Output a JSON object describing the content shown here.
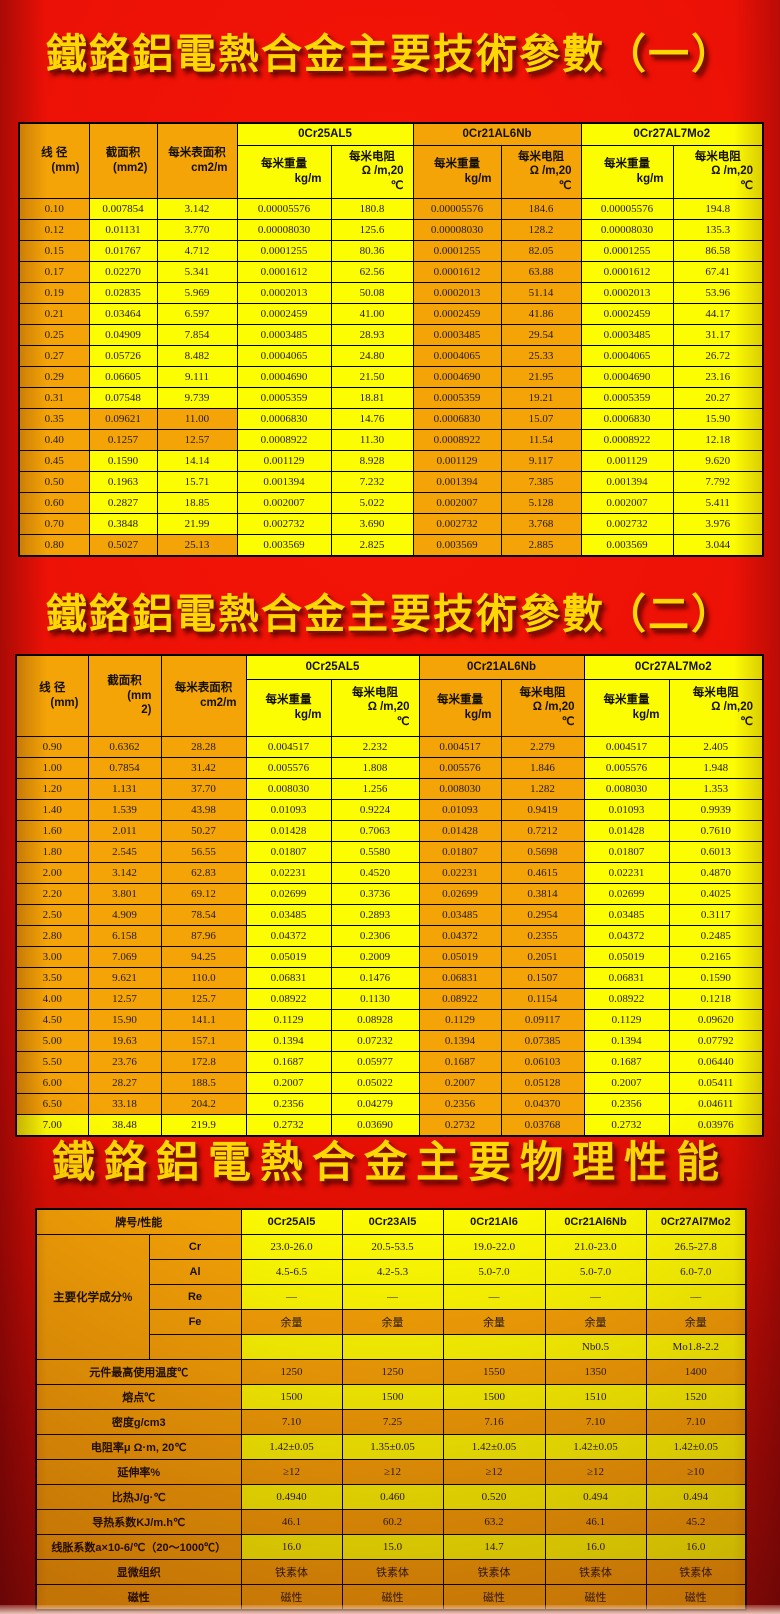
{
  "titles": {
    "t1": "鐵鉻鋁電熱合金主要技術參數（一）",
    "t2": "鐵鉻鋁電熱合金主要技術參數（二）",
    "t3": "鐵鉻鋁電熱合金主要物理性能"
  },
  "colors": {
    "background_red": "#e80f04",
    "cell_orange": "#f4a406",
    "cell_yellow": "#fdfd02",
    "title_gold": "#ffd704",
    "cell_text": "#221a18"
  },
  "header": {
    "diameter": [
      "线 径",
      "(mm)"
    ],
    "area1": [
      "截面积",
      "(mm2)"
    ],
    "area2": [
      "截面积",
      "(mm",
      "2)"
    ],
    "surface": [
      "每米表面积",
      "cm2/m"
    ],
    "alloys": [
      "0Cr25AL5",
      "0Cr21AL6Nb",
      "0Cr27AL7Mo2"
    ],
    "weight": [
      "每米重量",
      "kg/m"
    ],
    "resistance": [
      "每米电阻",
      "Ω /m,20",
      "℃"
    ]
  },
  "table1": {
    "tones": {
      "default": "oyyyyooyy",
      "overrides": {
        "10": "oooyyooyy",
        "11": "oooyyooyy",
        "16": "oooyyooyy"
      }
    },
    "rows": [
      [
        "0.10",
        "0.007854",
        "3.142",
        "0.00005576",
        "180.8",
        "0.00005576",
        "184.6",
        "0.00005576",
        "194.8"
      ],
      [
        "0.12",
        "0.01131",
        "3.770",
        "0.00008030",
        "125.6",
        "0.00008030",
        "128.2",
        "0.00008030",
        "135.3"
      ],
      [
        "0.15",
        "0.01767",
        "4.712",
        "0.0001255",
        "80.36",
        "0.0001255",
        "82.05",
        "0.0001255",
        "86.58"
      ],
      [
        "0.17",
        "0.02270",
        "5.341",
        "0.0001612",
        "62.56",
        "0.0001612",
        "63.88",
        "0.0001612",
        "67.41"
      ],
      [
        "0.19",
        "0.02835",
        "5.969",
        "0.0002013",
        "50.08",
        "0.0002013",
        "51.14",
        "0.0002013",
        "53.96"
      ],
      [
        "0.21",
        "0.03464",
        "6.597",
        "0.0002459",
        "41.00",
        "0.0002459",
        "41.86",
        "0.0002459",
        "44.17"
      ],
      [
        "0.25",
        "0.04909",
        "7.854",
        "0.0003485",
        "28.93",
        "0.0003485",
        "29.54",
        "0.0003485",
        "31.17"
      ],
      [
        "0.27",
        "0.05726",
        "8.482",
        "0.0004065",
        "24.80",
        "0.0004065",
        "25.33",
        "0.0004065",
        "26.72"
      ],
      [
        "0.29",
        "0.06605",
        "9.111",
        "0.0004690",
        "21.50",
        "0.0004690",
        "21.95",
        "0.0004690",
        "23.16"
      ],
      [
        "0.31",
        "0.07548",
        "9.739",
        "0.0005359",
        "18.81",
        "0.0005359",
        "19.21",
        "0.0005359",
        "20.27"
      ],
      [
        "0.35",
        "0.09621",
        "11.00",
        "0.0006830",
        "14.76",
        "0.0006830",
        "15.07",
        "0.0006830",
        "15.90"
      ],
      [
        "0.40",
        "0.1257",
        "12.57",
        "0.0008922",
        "11.30",
        "0.0008922",
        "11.54",
        "0.0008922",
        "12.18"
      ],
      [
        "0.45",
        "0.1590",
        "14.14",
        "0.001129",
        "8.928",
        "0.001129",
        "9.117",
        "0.001129",
        "9.620"
      ],
      [
        "0.50",
        "0.1963",
        "15.71",
        "0.001394",
        "7.232",
        "0.001394",
        "7.385",
        "0.001394",
        "7.792"
      ],
      [
        "0.60",
        "0.2827",
        "18.85",
        "0.002007",
        "5.022",
        "0.002007",
        "5.128",
        "0.002007",
        "5.411"
      ],
      [
        "0.70",
        "0.3848",
        "21.99",
        "0.002732",
        "3.690",
        "0.002732",
        "3.768",
        "0.002732",
        "3.976"
      ],
      [
        "0.80",
        "0.5027",
        "25.13",
        "0.003569",
        "2.825",
        "0.003569",
        "2.885",
        "0.003569",
        "3.044"
      ]
    ]
  },
  "table2": {
    "tones": {
      "default": "oooyyooyy",
      "overrides": {
        "18": "yyyyyooyy"
      }
    },
    "rows": [
      [
        "0.90",
        "0.6362",
        "28.28",
        "0.004517",
        "2.232",
        "0.004517",
        "2.279",
        "0.004517",
        "2.405"
      ],
      [
        "1.00",
        "0.7854",
        "31.42",
        "0.005576",
        "1.808",
        "0.005576",
        "1.846",
        "0.005576",
        "1.948"
      ],
      [
        "1.20",
        "1.131",
        "37.70",
        "0.008030",
        "1.256",
        "0.008030",
        "1.282",
        "0.008030",
        "1.353"
      ],
      [
        "1.40",
        "1.539",
        "43.98",
        "0.01093",
        "0.9224",
        "0.01093",
        "0.9419",
        "0.01093",
        "0.9939"
      ],
      [
        "1.60",
        "2.011",
        "50.27",
        "0.01428",
        "0.7063",
        "0.01428",
        "0.7212",
        "0.01428",
        "0.7610"
      ],
      [
        "1.80",
        "2.545",
        "56.55",
        "0.01807",
        "0.5580",
        "0.01807",
        "0.5698",
        "0.01807",
        "0.6013"
      ],
      [
        "2.00",
        "3.142",
        "62.83",
        "0.02231",
        "0.4520",
        "0.02231",
        "0.4615",
        "0.02231",
        "0.4870"
      ],
      [
        "2.20",
        "3.801",
        "69.12",
        "0.02699",
        "0.3736",
        "0.02699",
        "0.3814",
        "0.02699",
        "0.4025"
      ],
      [
        "2.50",
        "4.909",
        "78.54",
        "0.03485",
        "0.2893",
        "0.03485",
        "0.2954",
        "0.03485",
        "0.3117"
      ],
      [
        "2.80",
        "6.158",
        "87.96",
        "0.04372",
        "0.2306",
        "0.04372",
        "0.2355",
        "0.04372",
        "0.2485"
      ],
      [
        "3.00",
        "7.069",
        "94.25",
        "0.05019",
        "0.2009",
        "0.05019",
        "0.2051",
        "0.05019",
        "0.2165"
      ],
      [
        "3.50",
        "9.621",
        "110.0",
        "0.06831",
        "0.1476",
        "0.06831",
        "0.1507",
        "0.06831",
        "0.1590"
      ],
      [
        "4.00",
        "12.57",
        "125.7",
        "0.08922",
        "0.1130",
        "0.08922",
        "0.1154",
        "0.08922",
        "0.1218"
      ],
      [
        "4.50",
        "15.90",
        "141.1",
        "0.1129",
        "0.08928",
        "0.1129",
        "0.09117",
        "0.1129",
        "0.09620"
      ],
      [
        "5.00",
        "19.63",
        "157.1",
        "0.1394",
        "0.07232",
        "0.1394",
        "0.07385",
        "0.1394",
        "0.07792"
      ],
      [
        "5.50",
        "23.76",
        "172.8",
        "0.1687",
        "0.05977",
        "0.1687",
        "0.06103",
        "0.1687",
        "0.06440"
      ],
      [
        "6.00",
        "28.27",
        "188.5",
        "0.2007",
        "0.05022",
        "0.2007",
        "0.05128",
        "0.2007",
        "0.05411"
      ],
      [
        "6.50",
        "33.18",
        "204.2",
        "0.2356",
        "0.04279",
        "0.2356",
        "0.04370",
        "0.2356",
        "0.04611"
      ],
      [
        "7.00",
        "38.48",
        "219.9",
        "0.2732",
        "0.03690",
        "0.2732",
        "0.03768",
        "0.2732",
        "0.03976"
      ]
    ]
  },
  "table3": {
    "header": [
      "牌号/性能",
      "0Cr25Al5",
      "0Cr23Al5",
      "0Cr21Al6",
      "0Cr21Al6Nb",
      "0Cr27Al7Mo2"
    ],
    "chem_label": "主要化学成分%",
    "chem_rows": [
      {
        "element": "Cr",
        "tone": "y",
        "values": [
          "23.0-26.0",
          "20.5-53.5",
          "19.0-22.0",
          "21.0-23.0",
          "26.5-27.8"
        ]
      },
      {
        "element": "Al",
        "tone": "y",
        "values": [
          "4.5-6.5",
          "4.2-5.3",
          "5.0-7.0",
          "5.0-7.0",
          "6.0-7.0"
        ]
      },
      {
        "element": "Re",
        "tone": "y",
        "values": [
          "—",
          "—",
          "—",
          "—",
          "—"
        ]
      },
      {
        "element": "Fe",
        "tone": "o",
        "values": [
          "余量",
          "余量",
          "余量",
          "余量",
          "余量"
        ]
      },
      {
        "element": "",
        "tone": "y",
        "values": [
          "",
          "",
          "",
          "Nb0.5",
          "Mo1.8-2.2"
        ]
      }
    ],
    "prop_rows": [
      {
        "label": "元件最高使用温度℃",
        "tone": "o",
        "values": [
          "1250",
          "1250",
          "1550",
          "1350",
          "1400"
        ]
      },
      {
        "label": "熔点℃",
        "tone": "y",
        "values": [
          "1500",
          "1500",
          "1500",
          "1510",
          "1520"
        ]
      },
      {
        "label": "密度g/cm3",
        "tone": "o",
        "values": [
          "7.10",
          "7.25",
          "7.16",
          "7.10",
          "7.10"
        ]
      },
      {
        "label": "电阻率μ Ω·m, 20℃",
        "tone": "y",
        "values": [
          "1.42±0.05",
          "1.35±0.05",
          "1.42±0.05",
          "1.42±0.05",
          "1.42±0.05"
        ]
      },
      {
        "label": "延伸率%",
        "tone": "o",
        "values": [
          "≥12",
          "≥12",
          "≥12",
          "≥12",
          "≥10"
        ]
      },
      {
        "label": "比热J/g·℃",
        "tone": "y",
        "values": [
          "0.4940",
          "0.460",
          "0.520",
          "0.494",
          "0.494"
        ]
      },
      {
        "label": "导热系数KJ/m.h℃",
        "tone": "o",
        "values": [
          "46.1",
          "60.2",
          "63.2",
          "46.1",
          "45.2"
        ]
      },
      {
        "label": "线胀系数a×10-6/℃（20～1000℃）",
        "tone": "y",
        "values": [
          "16.0",
          "15.0",
          "14.7",
          "16.0",
          "16.0"
        ]
      },
      {
        "label": "显微组织",
        "tone": "o",
        "values": [
          "铁素体",
          "铁素体",
          "铁素体",
          "铁素体",
          "铁素体"
        ]
      },
      {
        "label": "磁性",
        "tone": "o",
        "values": [
          "磁性",
          "磁性",
          "磁性",
          "磁性",
          "磁性"
        ]
      }
    ]
  }
}
